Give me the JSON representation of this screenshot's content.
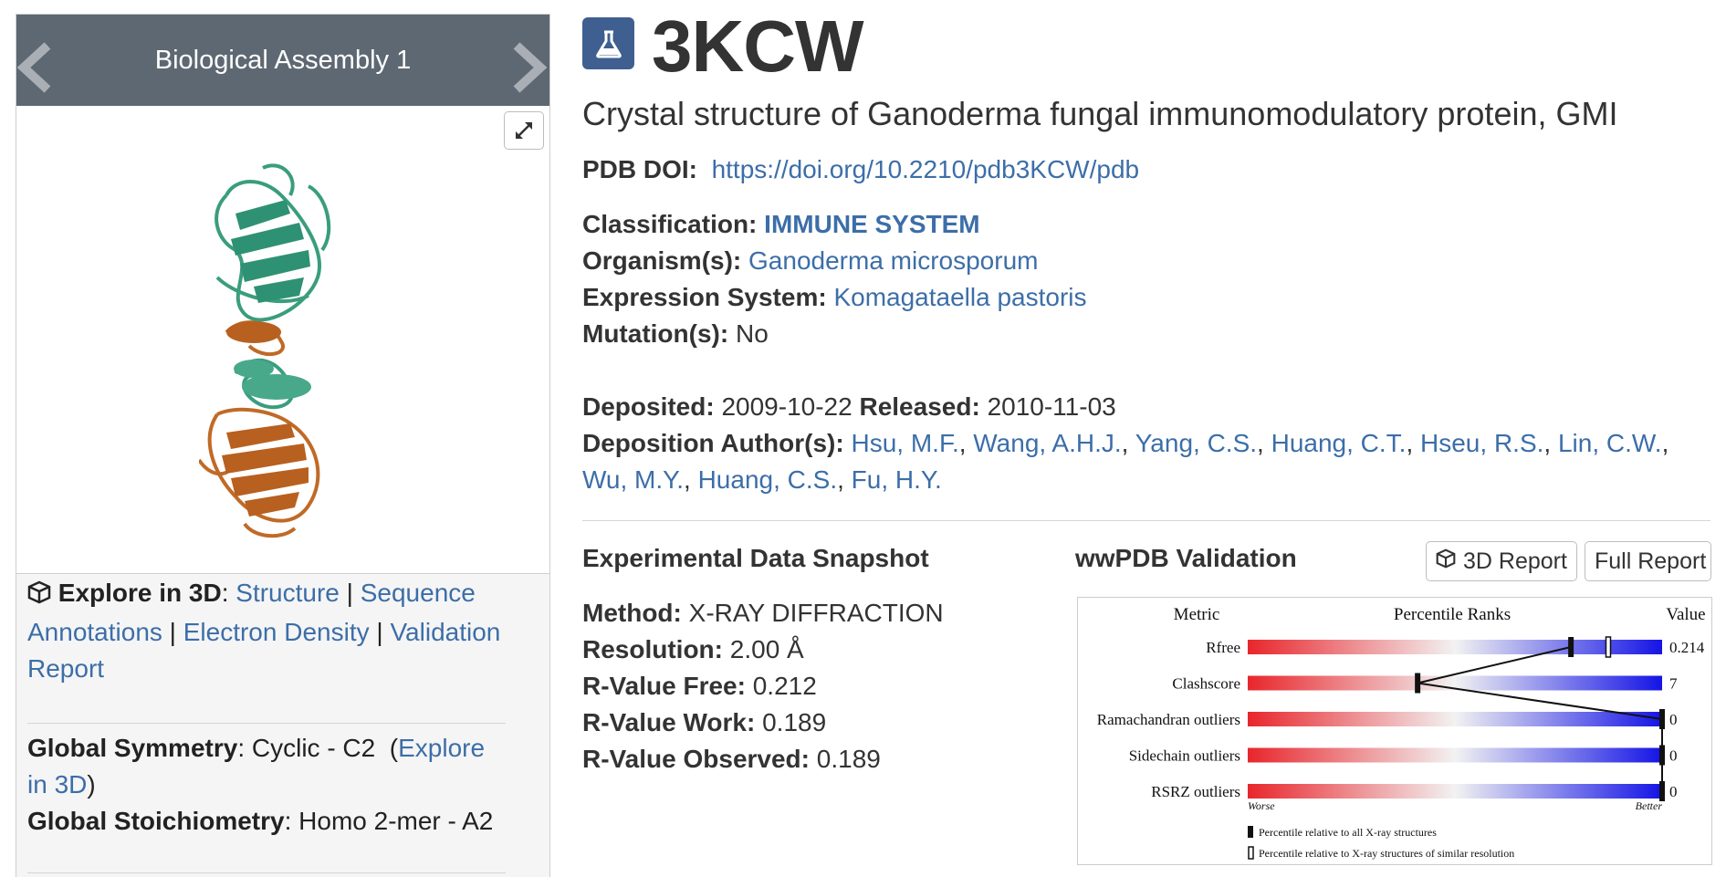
{
  "carousel": {
    "title": "Biological Assembly 1"
  },
  "header": {
    "pdb_id": "3KCW",
    "title": "Crystal structure of Ganoderma fungal immunomodulatory protein, GMI"
  },
  "doi": {
    "label": "PDB DOI:",
    "url": "https://doi.org/10.2210/pdb3KCW/pdb"
  },
  "classification": {
    "label": "Classification:",
    "value": "IMMUNE SYSTEM"
  },
  "organism": {
    "label": "Organism(s):",
    "value": "Ganoderma microsporum"
  },
  "expression": {
    "label": "Expression System:",
    "value": "Komagataella pastoris"
  },
  "mutation": {
    "label": "Mutation(s):",
    "value": "No"
  },
  "dates": {
    "deposited_label": "Deposited:",
    "deposited": "2009-10-22",
    "released_label": "Released:",
    "released": "2010-11-03"
  },
  "authors": {
    "label": "Deposition Author(s):",
    "list": [
      "Hsu, M.F.",
      "Wang, A.H.J.",
      "Yang, C.S.",
      "Huang, C.T.",
      "Hseu, R.S.",
      "Lin, C.W.",
      "Wu, M.Y.",
      "Huang, C.S.",
      "Fu, H.Y."
    ]
  },
  "explore": {
    "label": "Explore in 3D",
    "links": [
      "Structure",
      "Sequence Annotations",
      "Electron Density",
      "Validation Report"
    ]
  },
  "symmetry": {
    "symmetry_label": "Global Symmetry",
    "symmetry_value": "Cyclic - C2",
    "explore_link": "Explore in 3D",
    "stoich_label": "Global Stoichiometry",
    "stoich_value": "Homo 2-mer - A2"
  },
  "snapshot": {
    "title": "Experimental Data Snapshot",
    "method_label": "Method:",
    "method": "X-RAY DIFFRACTION",
    "resolution_label": "Resolution:",
    "resolution": "2.00 Å",
    "rfree_label": "R-Value Free:",
    "rfree": "0.212",
    "rwork_label": "R-Value Work:",
    "rwork": "0.189",
    "robs_label": "R-Value Observed:",
    "robs": "0.189"
  },
  "validation": {
    "title": "wwPDB Validation",
    "btn_3d": "3D Report",
    "btn_full": "Full Report"
  },
  "chart_data": {
    "type": "bar",
    "title": "",
    "header_metric": "Metric",
    "header_percentile": "Percentile Ranks",
    "header_value": "Value",
    "categories": [
      "Rfree",
      "Clashscore",
      "Ramachandran outliers",
      "Sidechain outliers",
      "RSRZ outliers"
    ],
    "values": [
      "0.214",
      "7",
      "0",
      "0",
      "0"
    ],
    "series": [
      {
        "name": "Percentile relative to all X-ray structures",
        "values": [
          78,
          41,
          100,
          100,
          100
        ]
      },
      {
        "name": "Percentile relative to X-ray structures of similar resolution",
        "values": [
          87,
          null,
          null,
          null,
          null
        ]
      }
    ],
    "xlim": [
      0,
      100
    ],
    "worse_label": "Worse",
    "better_label": "Better",
    "colors": {
      "worse": "#e8262c",
      "mid": "#f2f2f2",
      "better": "#1414e6"
    }
  }
}
